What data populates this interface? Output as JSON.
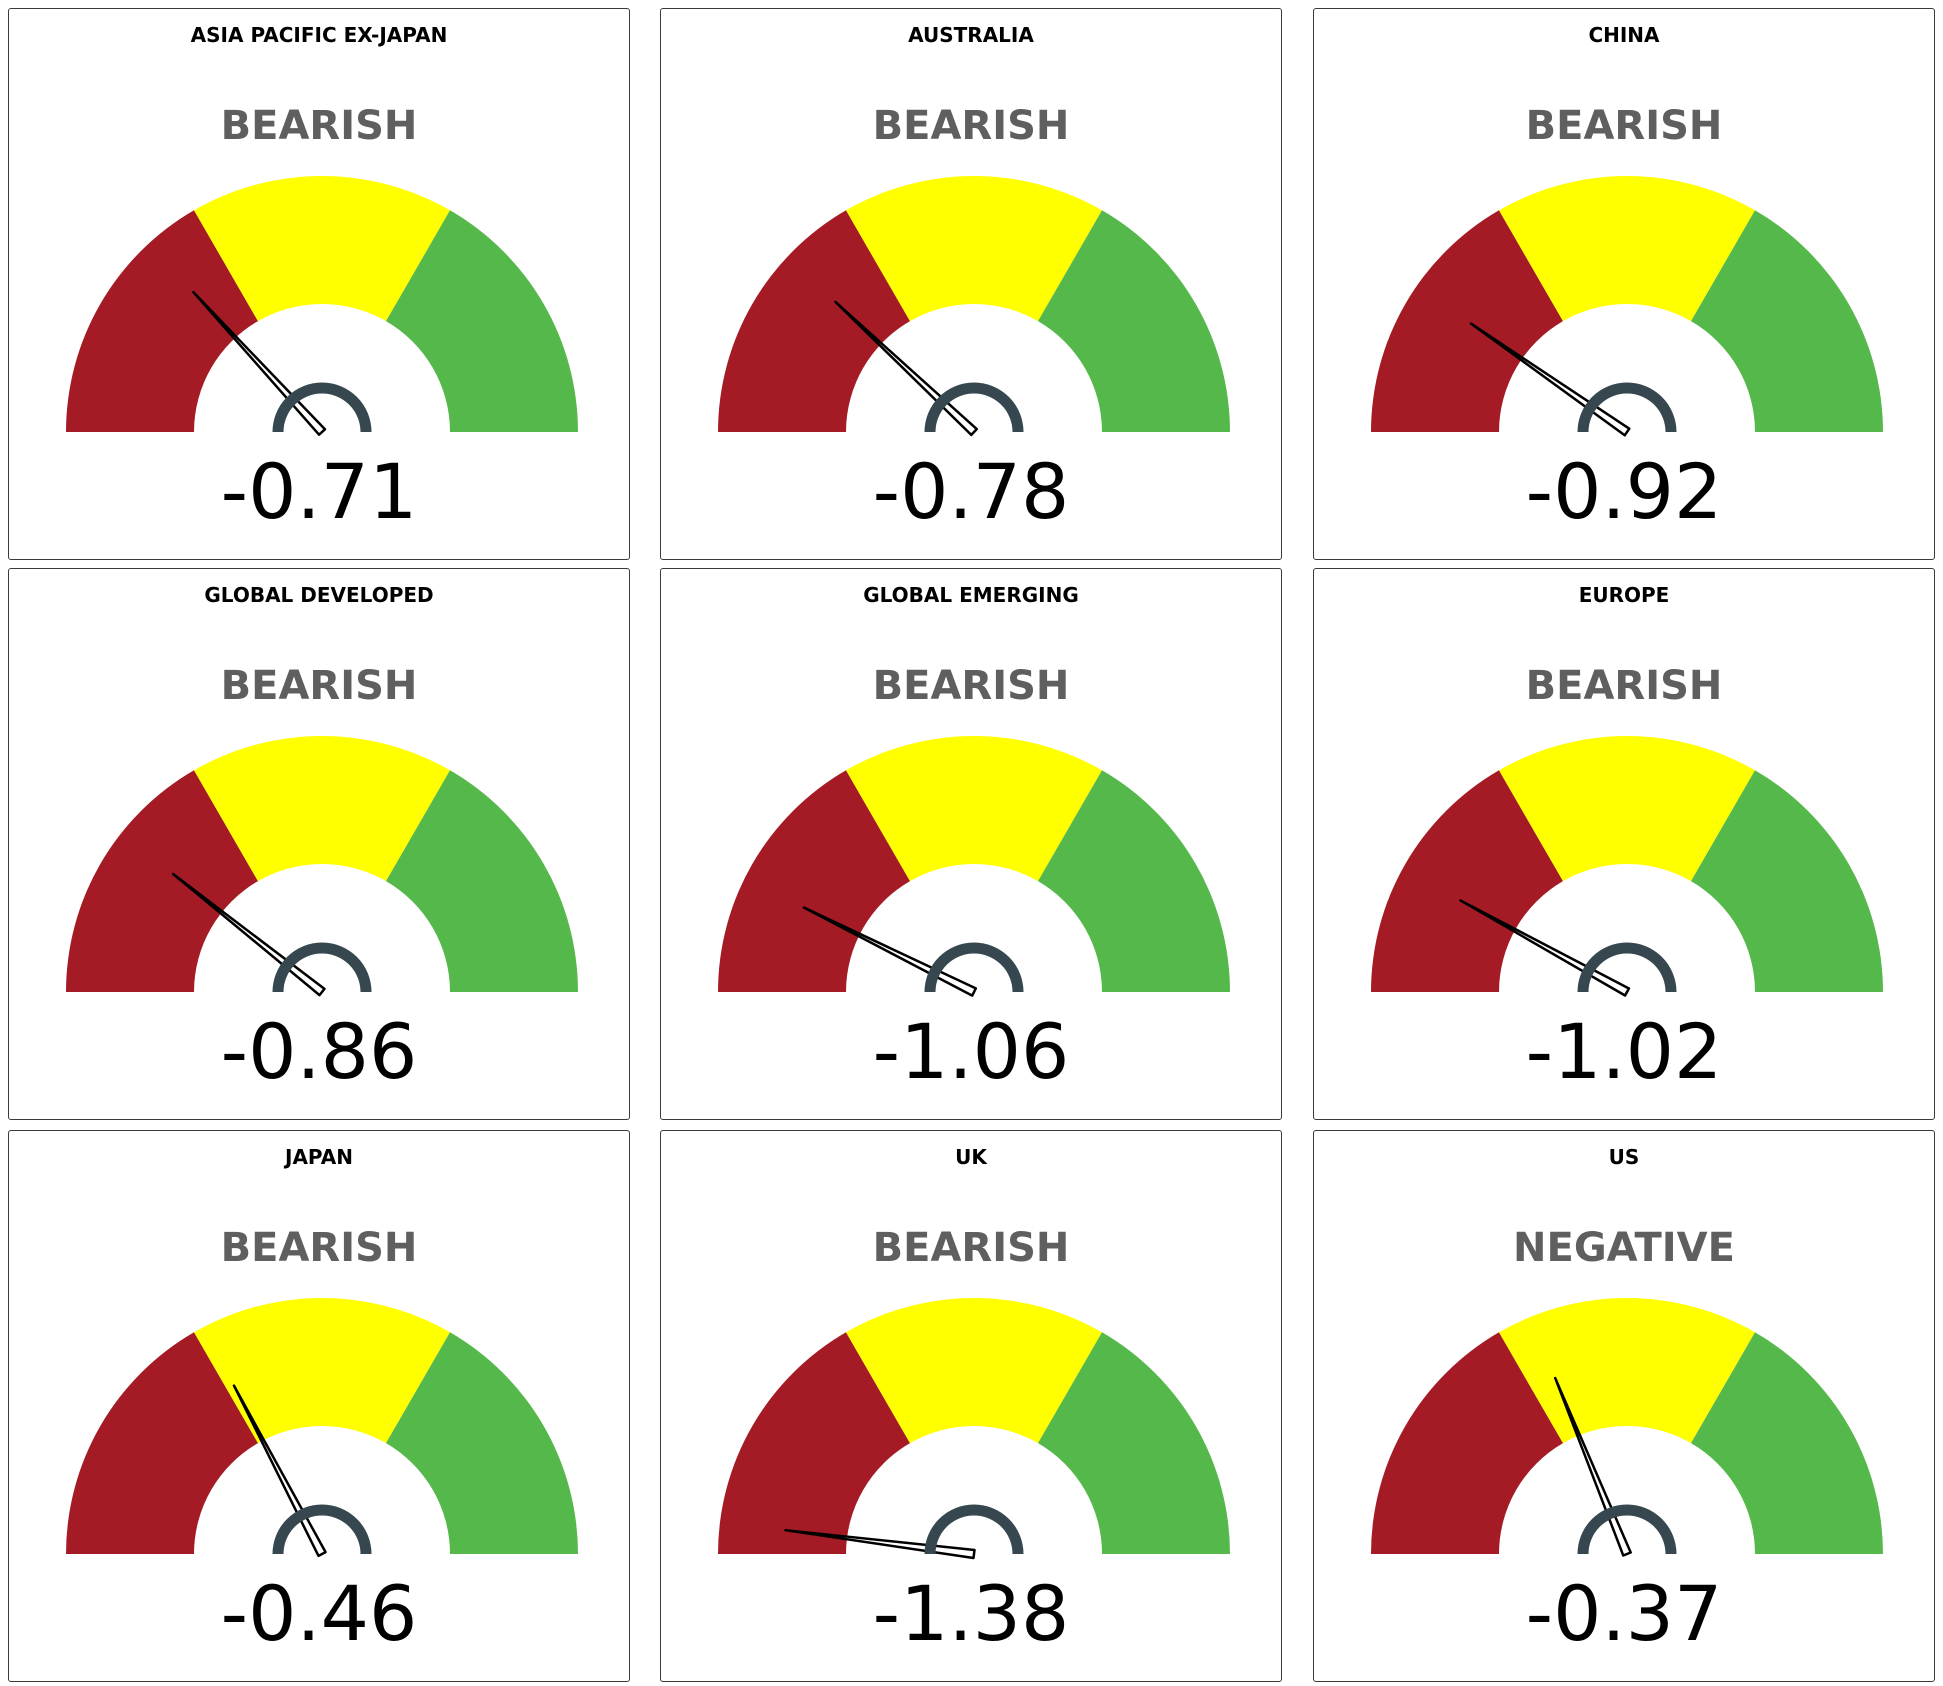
{
  "colors": {
    "bearish": "#a51b25",
    "neutral": "#ffff00",
    "bullish": "#55b84a",
    "needle": "#000000",
    "hub": "#37474f"
  },
  "chart_data": [
    {
      "type": "gauge",
      "title": "ASIA PACIFIC EX-JAPAN",
      "status": "BEARISH",
      "value": -0.71,
      "label": "-0.71",
      "range": [
        -1.5,
        1.5
      ]
    },
    {
      "type": "gauge",
      "title": "AUSTRALIA",
      "status": "BEARISH",
      "value": -0.78,
      "label": "-0.78",
      "range": [
        -1.5,
        1.5
      ]
    },
    {
      "type": "gauge",
      "title": "CHINA",
      "status": "BEARISH",
      "value": -0.92,
      "label": "-0.92",
      "range": [
        -1.5,
        1.5
      ]
    },
    {
      "type": "gauge",
      "title": "GLOBAL DEVELOPED",
      "status": "BEARISH",
      "value": -0.86,
      "label": "-0.86",
      "range": [
        -1.5,
        1.5
      ]
    },
    {
      "type": "gauge",
      "title": "GLOBAL EMERGING",
      "status": "BEARISH",
      "value": -1.06,
      "label": "-1.06",
      "range": [
        -1.5,
        1.5
      ]
    },
    {
      "type": "gauge",
      "title": "EUROPE",
      "status": "BEARISH",
      "value": -1.02,
      "label": "-1.02",
      "range": [
        -1.5,
        1.5
      ]
    },
    {
      "type": "gauge",
      "title": "JAPAN",
      "status": "BEARISH",
      "value": -0.46,
      "label": "-0.46",
      "range": [
        -1.5,
        1.5
      ]
    },
    {
      "type": "gauge",
      "title": "UK",
      "status": "BEARISH",
      "value": -1.38,
      "label": "-1.38",
      "range": [
        -1.5,
        1.5
      ]
    },
    {
      "type": "gauge",
      "title": "US",
      "status": "NEGATIVE",
      "value": -0.37,
      "label": "-0.37",
      "range": [
        -1.5,
        1.5
      ]
    }
  ]
}
